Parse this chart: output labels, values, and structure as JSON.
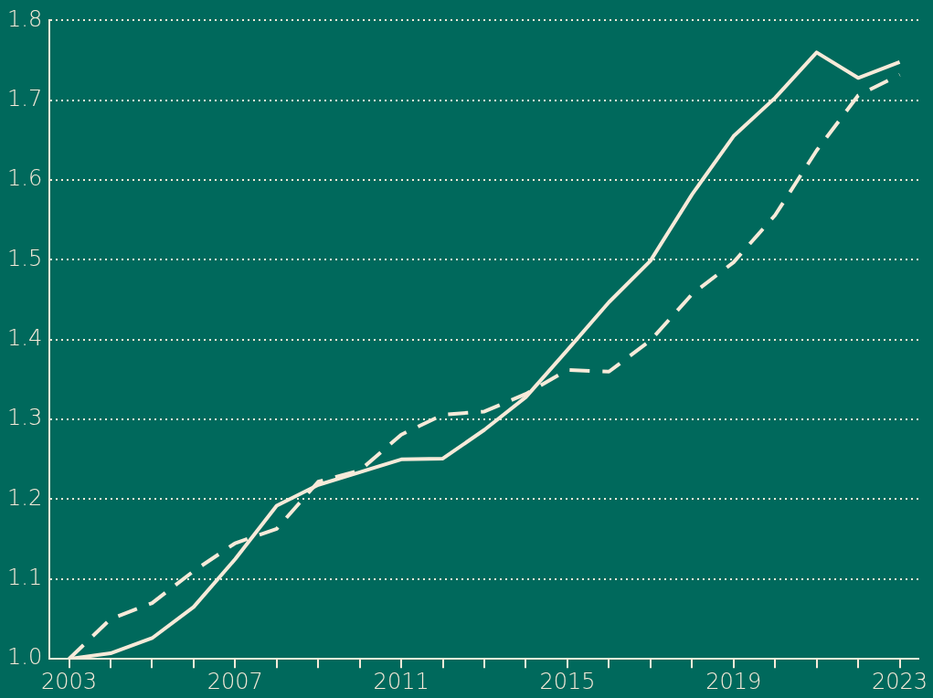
{
  "chart_data": {
    "type": "line",
    "x": [
      2003,
      2004,
      2005,
      2006,
      2007,
      2008,
      2009,
      2010,
      2011,
      2012,
      2013,
      2014,
      2015,
      2016,
      2017,
      2018,
      2019,
      2020,
      2021,
      2022,
      2023
    ],
    "series": [
      {
        "color": "#f7ead9",
        "line_style": "solid",
        "values": [
          1.0,
          1.007,
          1.026,
          1.065,
          1.125,
          1.192,
          1.218,
          1.234,
          1.25,
          1.251,
          1.287,
          1.328,
          1.387,
          1.447,
          1.499,
          1.582,
          1.655,
          1.703,
          1.76,
          1.728,
          1.748
        ]
      },
      {
        "color": "#f7ead9",
        "line_style": "dashed",
        "values": [
          1.0,
          1.05,
          1.07,
          1.11,
          1.145,
          1.163,
          1.222,
          1.236,
          1.281,
          1.306,
          1.31,
          1.332,
          1.362,
          1.36,
          1.399,
          1.457,
          1.497,
          1.556,
          1.637,
          1.706,
          1.732
        ]
      }
    ],
    "xlim": [
      2002.53,
      2023.45
    ],
    "xticks": [
      2003,
      {
        "value": 2004,
        "label": null
      },
      {
        "value": 2005,
        "label": null
      },
      {
        "value": 2006,
        "label": null
      },
      2007,
      {
        "value": 2008,
        "label": null
      },
      {
        "value": 2009,
        "label": null
      },
      {
        "value": 2010,
        "label": null
      },
      2011,
      {
        "value": 2012,
        "label": null
      },
      {
        "value": 2013,
        "label": null
      },
      {
        "value": 2014,
        "label": null
      },
      2015,
      {
        "value": 2016,
        "label": null
      },
      {
        "value": 2017,
        "label": null
      },
      {
        "value": 2018,
        "label": null
      },
      2019,
      {
        "value": 2020,
        "label": null
      },
      {
        "value": 2021,
        "label": null
      },
      {
        "value": 2022,
        "label": null
      },
      2023
    ],
    "ylim": [
      1.0,
      1.8
    ],
    "yticks": [
      {
        "value": 1.0,
        "label": "1.0"
      },
      1.1,
      1.2,
      1.3,
      1.4,
      1.5,
      1.6,
      1.7,
      1.8
    ],
    "grid": "y",
    "legend": false,
    "marker": "none"
  }
}
